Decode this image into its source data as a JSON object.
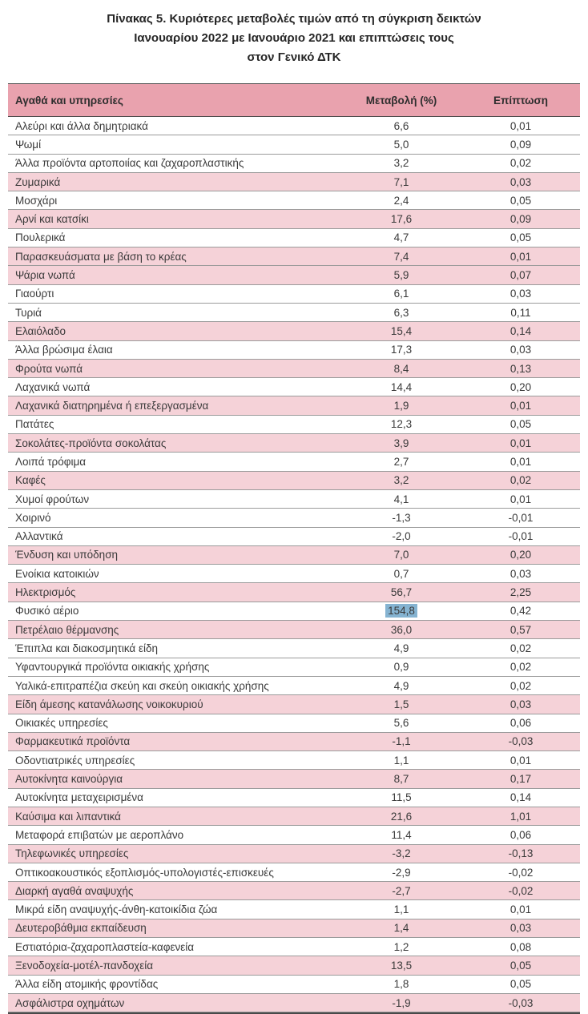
{
  "title": {
    "line1": "Πίνακας  5. Κυριότερες μεταβολές τιμών από τη σύγκριση δεικτών",
    "line2": "Ιανουαρίου 2022 με Ιανουάριο 2021 και επιπτώσεις τους",
    "line3": "στον Γενικό ΔΤΚ"
  },
  "table": {
    "columns": {
      "goods": "Αγαθά και υπηρεσίες",
      "change": "Μεταβολή (%)",
      "impact": "Επίπτωση"
    },
    "rows": [
      {
        "label": "Αλεύρι και άλλα δημητριακά",
        "change": "6,6",
        "impact": "0,01",
        "shaded": false,
        "highlight": false
      },
      {
        "label": "Ψωμί",
        "change": "5,0",
        "impact": "0,09",
        "shaded": false,
        "highlight": false
      },
      {
        "label": "Άλλα προϊόντα αρτοποιίας και ζαχαροπλαστικής",
        "change": "3,2",
        "impact": "0,02",
        "shaded": false,
        "highlight": false
      },
      {
        "label": "Ζυμαρικά",
        "change": "7,1",
        "impact": "0,03",
        "shaded": true,
        "highlight": false
      },
      {
        "label": "Μοσχάρι",
        "change": "2,4",
        "impact": "0,05",
        "shaded": false,
        "highlight": false
      },
      {
        "label": "Αρνί και κατσίκι",
        "change": "17,6",
        "impact": "0,09",
        "shaded": true,
        "highlight": false
      },
      {
        "label": "Πουλερικά",
        "change": "4,7",
        "impact": "0,05",
        "shaded": false,
        "highlight": false
      },
      {
        "label": "Παρασκευάσματα με βάση το κρέας",
        "change": "7,4",
        "impact": "0,01",
        "shaded": true,
        "highlight": false
      },
      {
        "label": "Ψάρια νωπά",
        "change": "5,9",
        "impact": "0,07",
        "shaded": true,
        "highlight": false
      },
      {
        "label": "Γιαούρτι",
        "change": "6,1",
        "impact": "0,03",
        "shaded": false,
        "highlight": false
      },
      {
        "label": "Τυριά",
        "change": "6,3",
        "impact": "0,11",
        "shaded": false,
        "highlight": false
      },
      {
        "label": "Ελαιόλαδο",
        "change": "15,4",
        "impact": "0,14",
        "shaded": true,
        "highlight": false
      },
      {
        "label": "Άλλα βρώσιμα έλαια",
        "change": "17,3",
        "impact": "0,03",
        "shaded": false,
        "highlight": false
      },
      {
        "label": "Φρούτα νωπά",
        "change": "8,4",
        "impact": "0,13",
        "shaded": true,
        "highlight": false
      },
      {
        "label": "Λαχανικά νωπά",
        "change": "14,4",
        "impact": "0,20",
        "shaded": false,
        "highlight": false
      },
      {
        "label": "Λαχανικά διατηρημένα ή επεξεργασμένα",
        "change": "1,9",
        "impact": "0,01",
        "shaded": true,
        "highlight": false
      },
      {
        "label": "Πατάτες",
        "change": "12,3",
        "impact": "0,05",
        "shaded": false,
        "highlight": false
      },
      {
        "label": "Σοκολάτες-προϊόντα σοκολάτας",
        "change": "3,9",
        "impact": "0,01",
        "shaded": true,
        "highlight": false
      },
      {
        "label": "Λοιπά τρόφιμα",
        "change": "2,7",
        "impact": "0,01",
        "shaded": false,
        "highlight": false
      },
      {
        "label": "Καφές",
        "change": "3,2",
        "impact": "0,02",
        "shaded": true,
        "highlight": false
      },
      {
        "label": "Χυμοί φρούτων",
        "change": "4,1",
        "impact": "0,01",
        "shaded": false,
        "highlight": false
      },
      {
        "label": "Χοιρινό",
        "change": "-1,3",
        "impact": "-0,01",
        "shaded": false,
        "highlight": false
      },
      {
        "label": "Αλλαντικά",
        "change": "-2,0",
        "impact": "-0,01",
        "shaded": false,
        "highlight": false
      },
      {
        "label": "Ένδυση και υπόδηση",
        "change": "7,0",
        "impact": "0,20",
        "shaded": true,
        "highlight": false
      },
      {
        "label": "Ενοίκια κατοικιών",
        "change": "0,7",
        "impact": "0,03",
        "shaded": false,
        "highlight": false
      },
      {
        "label": "Ηλεκτρισμός",
        "change": "56,7",
        "impact": "2,25",
        "shaded": true,
        "highlight": false
      },
      {
        "label": "Φυσικό αέριο",
        "change": "154,8",
        "impact": "0,42",
        "shaded": false,
        "highlight": true
      },
      {
        "label": "Πετρέλαιο θέρμανσης",
        "change": "36,0",
        "impact": "0,57",
        "shaded": true,
        "highlight": false
      },
      {
        "label": "Έπιπλα και διακοσμητικά είδη",
        "change": "4,9",
        "impact": "0,02",
        "shaded": false,
        "highlight": false
      },
      {
        "label": "Υφαντουργικά προϊόντα οικιακής χρήσης",
        "change": "0,9",
        "impact": "0,02",
        "shaded": false,
        "highlight": false
      },
      {
        "label": "Υαλικά-επιτραπέζια σκεύη και σκεύη οικιακής χρήσης",
        "change": "4,9",
        "impact": "0,02",
        "shaded": false,
        "highlight": false
      },
      {
        "label": "Είδη άμεσης κατανάλωσης νοικοκυριού",
        "change": "1,5",
        "impact": "0,03",
        "shaded": true,
        "highlight": false
      },
      {
        "label": "Οικιακές υπηρεσίες",
        "change": "5,6",
        "impact": "0,06",
        "shaded": false,
        "highlight": false
      },
      {
        "label": "Φαρμακευτικά προϊόντα",
        "change": "-1,1",
        "impact": "-0,03",
        "shaded": true,
        "highlight": false
      },
      {
        "label": "Οδοντιατρικές υπηρεσίες",
        "change": "1,1",
        "impact": "0,01",
        "shaded": false,
        "highlight": false
      },
      {
        "label": "Αυτοκίνητα καινούργια",
        "change": "8,7",
        "impact": "0,17",
        "shaded": true,
        "highlight": false
      },
      {
        "label": "Αυτοκίνητα μεταχειρισμένα",
        "change": "11,5",
        "impact": "0,14",
        "shaded": false,
        "highlight": false
      },
      {
        "label": "Καύσιμα και λιπαντικά",
        "change": "21,6",
        "impact": "1,01",
        "shaded": true,
        "highlight": false
      },
      {
        "label": "Μεταφορά επιβατών με αεροπλάνο",
        "change": "11,4",
        "impact": "0,06",
        "shaded": false,
        "highlight": false
      },
      {
        "label": "Τηλεφωνικές υπηρεσίες",
        "change": "-3,2",
        "impact": "-0,13",
        "shaded": true,
        "highlight": false
      },
      {
        "label": "Οπτικοακουστικός εξοπλισμός-υπολογιστές-επισκευές",
        "change": "-2,9",
        "impact": "-0,02",
        "shaded": false,
        "highlight": false
      },
      {
        "label": "Διαρκή αγαθά αναψυχής",
        "change": "-2,7",
        "impact": "-0,02",
        "shaded": true,
        "highlight": false
      },
      {
        "label": "Μικρά είδη αναψυχής-άνθη-κατοικίδια ζώα",
        "change": "1,1",
        "impact": "0,01",
        "shaded": false,
        "highlight": false
      },
      {
        "label": "Δευτεροβάθμια εκπαίδευση",
        "change": "1,4",
        "impact": "0,03",
        "shaded": true,
        "highlight": false
      },
      {
        "label": "Εστιατόρια-ζαχαροπλαστεία-καφενεία",
        "change": "1,2",
        "impact": "0,08",
        "shaded": false,
        "highlight": false
      },
      {
        "label": "Ξενοδοχεία-μοτέλ-πανδοχεία",
        "change": "13,5",
        "impact": "0,05",
        "shaded": true,
        "highlight": false
      },
      {
        "label": "Άλλα είδη ατομικής φροντίδας",
        "change": "1,8",
        "impact": "0,05",
        "shaded": false,
        "highlight": false
      },
      {
        "label": "Ασφάλιστρα οχημάτων",
        "change": "-1,9",
        "impact": "-0,03",
        "shaded": true,
        "highlight": false
      }
    ]
  },
  "colors": {
    "header_bg": "#e9a2ae",
    "shaded_row_bg": "#f5d2d8",
    "highlight_bg": "#85b3d1",
    "border_dark": "#4a4a4a",
    "border_light": "#9b9b9b"
  }
}
